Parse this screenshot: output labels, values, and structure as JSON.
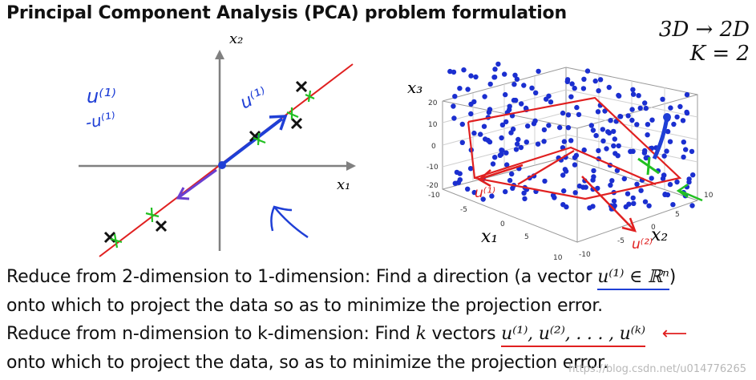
{
  "title": "Principal Component Analysis (PCA) problem formulation",
  "corner": {
    "line1": "3D → 2D",
    "line2": "K = 2"
  },
  "left_plot": {
    "x_label": "x₁",
    "y_label": "x₂",
    "annotations": {
      "u1_near_line": "u⁽¹⁾",
      "u1_left": "u⁽¹⁾",
      "neg_u1_left": "-u⁽¹⁾"
    }
  },
  "right_plot": {
    "z_label": "x₃",
    "x_label": "x₁",
    "y_label": "x₂",
    "z_ticks": [
      "20",
      "10",
      "0",
      "-10",
      "-20"
    ],
    "x_ticks": [
      "-10",
      "-5",
      "0",
      "5",
      "10"
    ],
    "y_ticks": [
      "-10",
      "-5",
      "0",
      "5",
      "10"
    ],
    "annotations": {
      "u1": "u⁽¹⁾",
      "u2": "u⁽²⁾"
    }
  },
  "text": {
    "line1": "Reduce from 2-dimension to 1-dimension: Find a direction (a vector ",
    "line1_math": "u⁽¹⁾ ∈ ℝⁿ",
    "line1_end": ")",
    "line2": "onto which to project the data so as to minimize the projection error.",
    "line3": "Reduce from n-dimension to k-dimension: Find ",
    "line3_k": "k",
    "line3_mid": " vectors ",
    "line3_math": "u⁽¹⁾, u⁽²⁾, . . . , u⁽ᵏ⁾",
    "line4": "onto which to project the data, so as to minimize the projection error."
  },
  "watermark": "https://blog.csdn.net/u014776265",
  "colors": {
    "blue_ink": "#1f3fd6",
    "red_ink": "#e02020",
    "green_ink": "#22c022",
    "axis": "#7f7f7f",
    "dot": "#1b2fd0"
  }
}
